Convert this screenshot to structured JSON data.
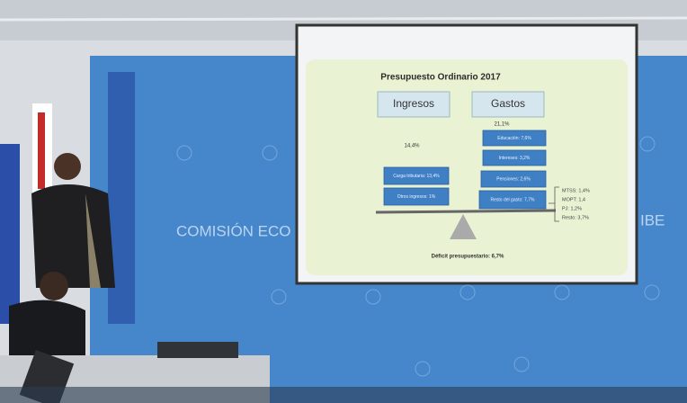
{
  "backdrop": {
    "banner_left": "COMISIÓN ECO",
    "banner_right": "IBE"
  },
  "slide": {
    "title": "Presupuesto Ordinario 2017",
    "ingresos": {
      "label": "Ingresos",
      "total": "14,4%",
      "items": [
        "Carga tributaria: 13,4%",
        "Otros ingresos: 1%"
      ]
    },
    "gastos": {
      "label": "Gastos",
      "total": "21,1%",
      "items": [
        "Educación: 7,6%",
        "Intereses: 3,2%",
        "Pensiones: 2,6%",
        "Resto del gasto: 7,7%"
      ]
    },
    "detail": [
      "MTSS: 1,4%",
      "MOPT: 1,4",
      "PJ: 1,2%",
      "Resto: 3,7%"
    ],
    "deficit": "Déficit presupuestario: 6,7%"
  }
}
